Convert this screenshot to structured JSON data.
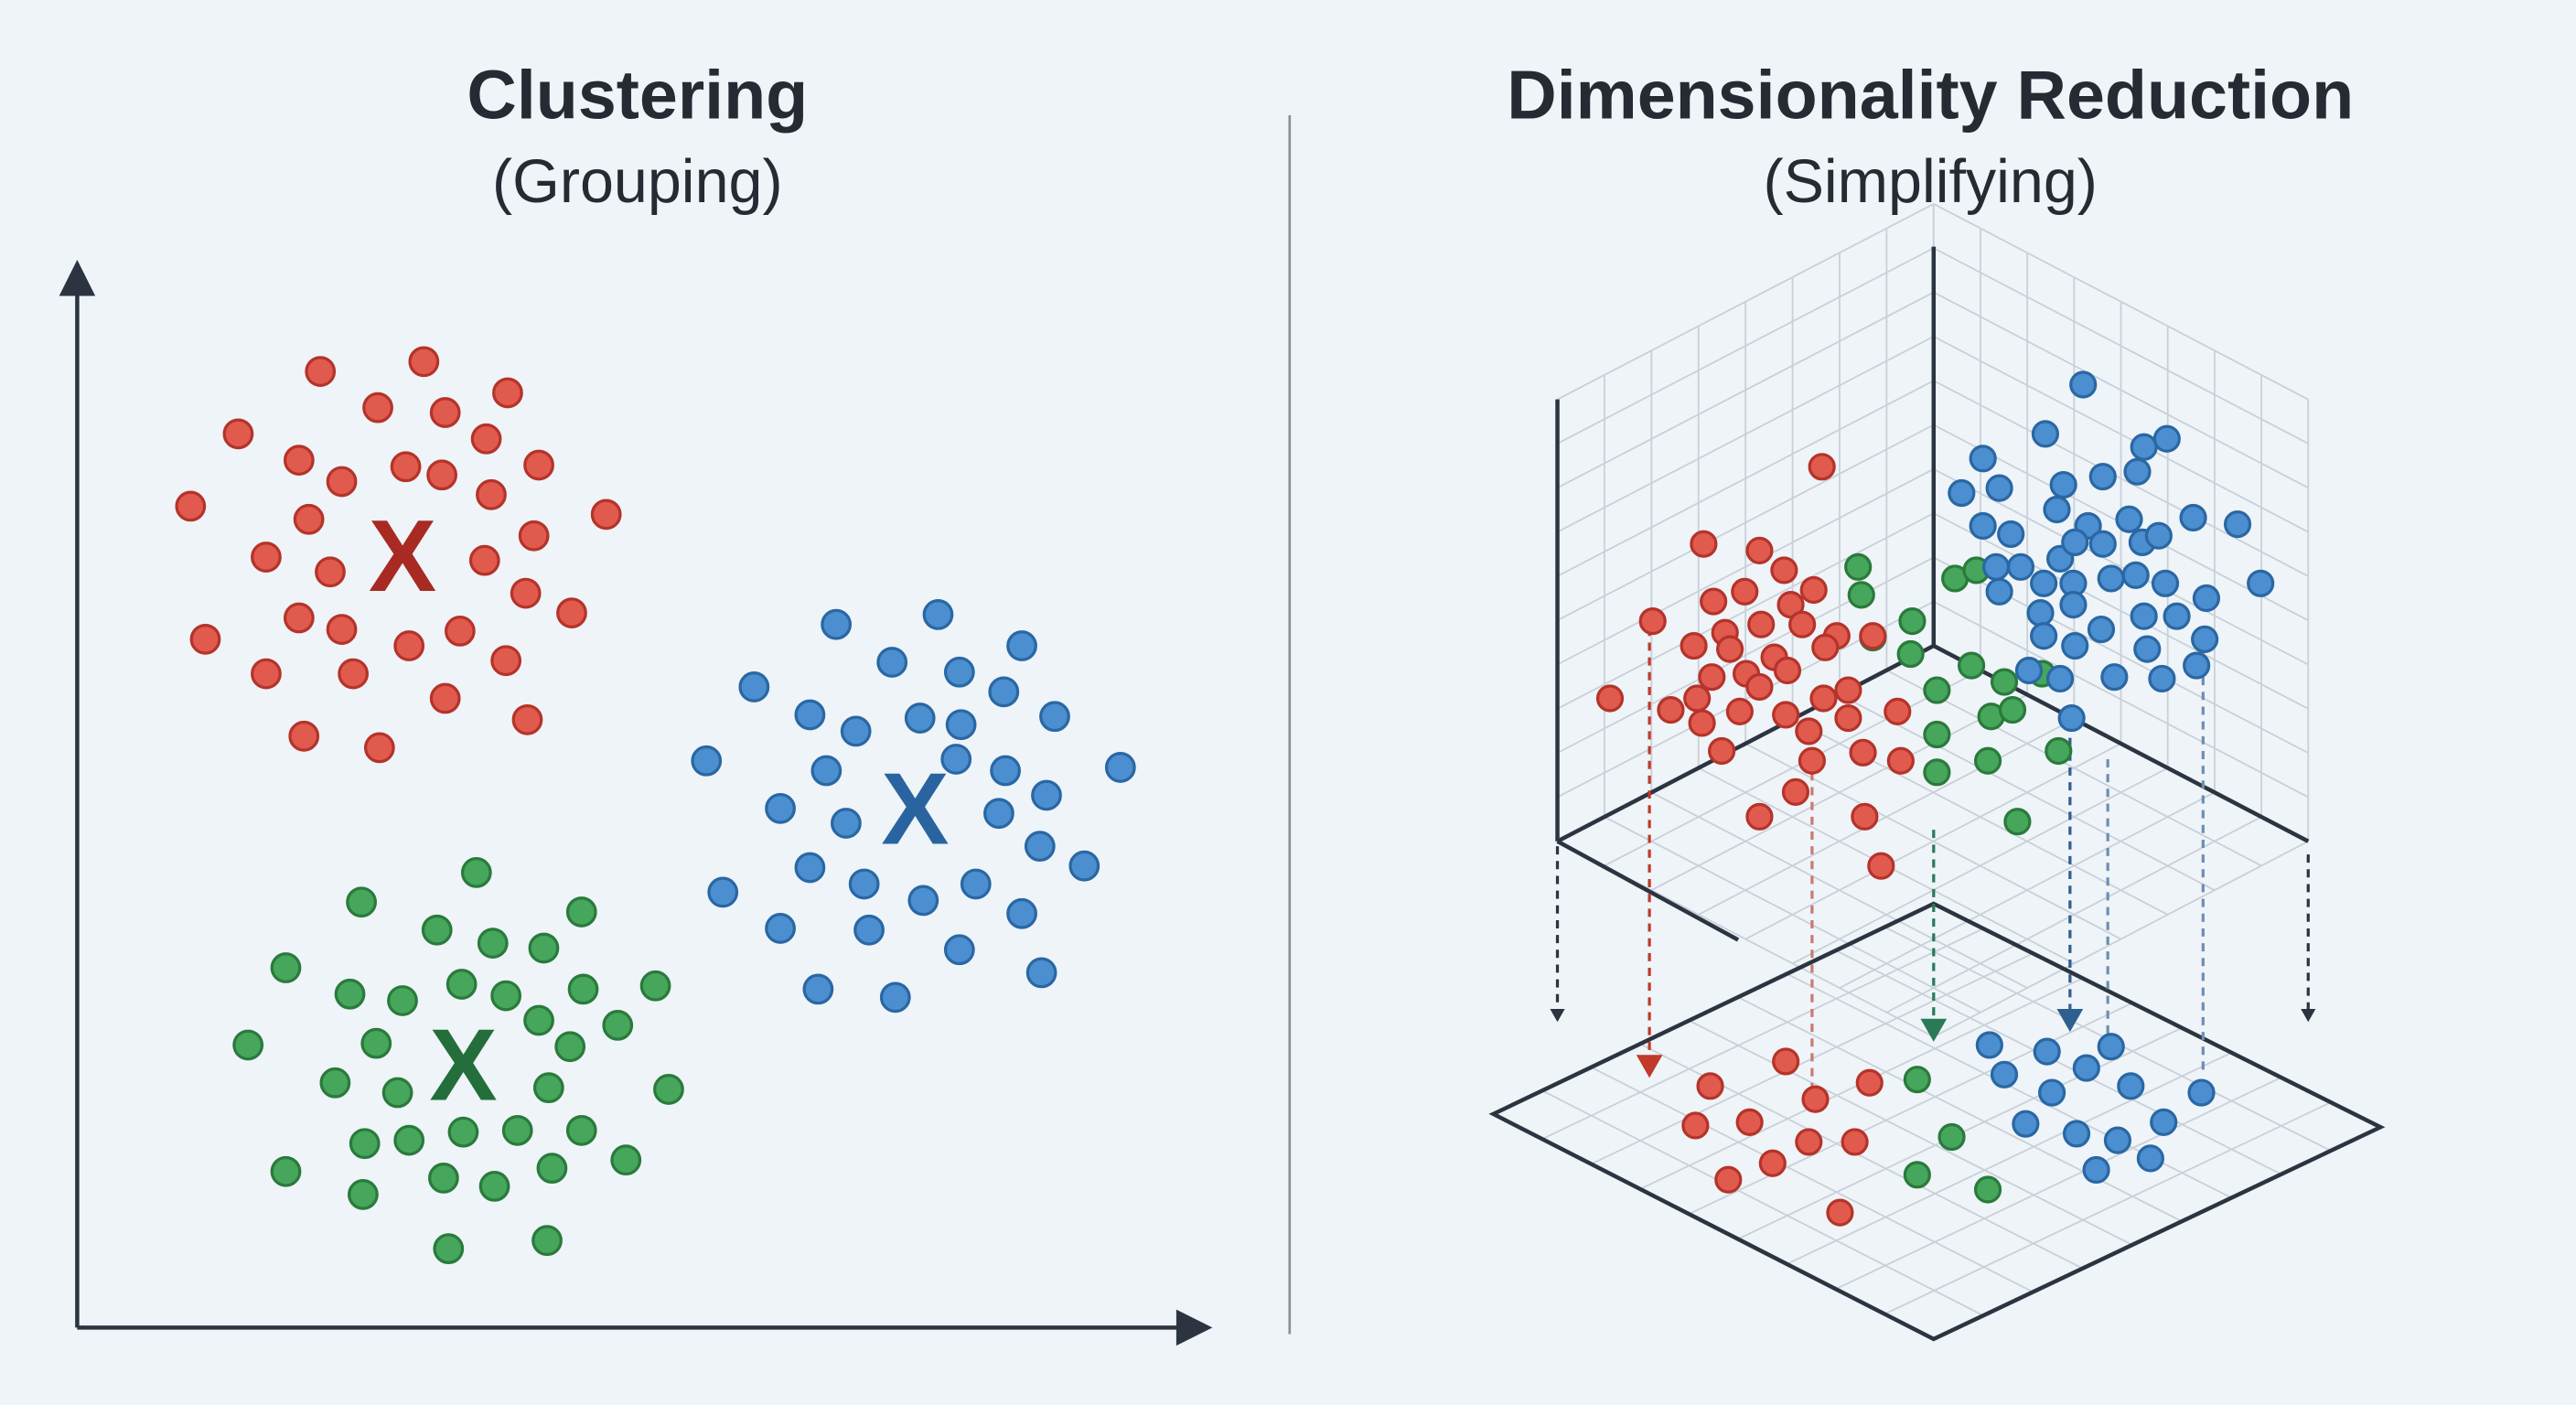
{
  "left_panel": {
    "title": "Clustering",
    "subtitle": "(Grouping)",
    "centroid_marker": "X"
  },
  "right_panel": {
    "title": "Dimensionality Reduction",
    "subtitle": "(Simplifying)"
  },
  "colors": {
    "background": "#eef4f8",
    "axis": "#2b3440",
    "grid": "#c9d0d8",
    "red": "#e05a4e",
    "red_outline": "#b5332a",
    "red_centroid": "#a82a22",
    "blue": "#4b8fd0",
    "blue_outline": "#2a67a3",
    "blue_centroid": "#2a64a0",
    "green": "#46a65b",
    "green_outline": "#2a7a3c",
    "green_centroid": "#236e3a"
  }
}
